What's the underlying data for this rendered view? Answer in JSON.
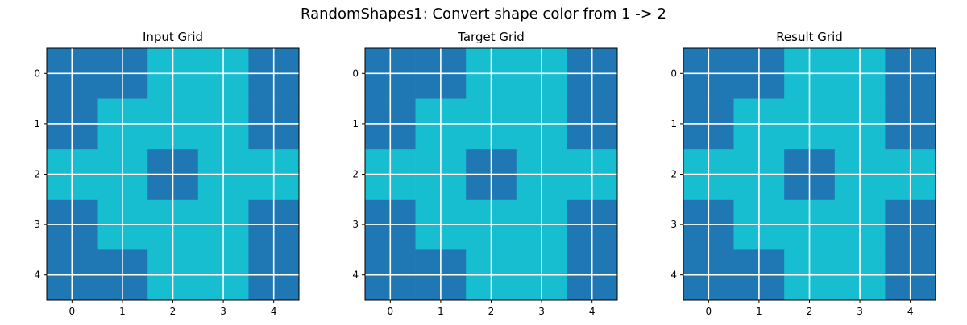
{
  "figure": {
    "title": "RandomShapes1: Convert shape color from 1 -> 2"
  },
  "colors": {
    "1": "#1f77b4",
    "2": "#17becf",
    "gridline": "#ffffff"
  },
  "chart_data": [
    {
      "type": "heatmap",
      "title": "Input Grid",
      "x_ticks": [
        0,
        1,
        2,
        3,
        4
      ],
      "y_ticks": [
        0,
        1,
        2,
        3,
        4
      ],
      "grid": true,
      "cell_rows": [
        [
          1,
          1,
          1,
          1,
          2,
          2,
          2,
          2,
          1,
          1
        ],
        [
          1,
          1,
          1,
          1,
          2,
          2,
          2,
          2,
          1,
          1
        ],
        [
          1,
          1,
          2,
          2,
          2,
          2,
          2,
          2,
          1,
          1
        ],
        [
          1,
          1,
          2,
          2,
          2,
          2,
          2,
          2,
          1,
          1
        ],
        [
          2,
          2,
          2,
          2,
          1,
          1,
          2,
          2,
          2,
          2
        ],
        [
          2,
          2,
          2,
          2,
          1,
          1,
          2,
          2,
          2,
          2
        ],
        [
          1,
          1,
          2,
          2,
          2,
          2,
          2,
          2,
          1,
          1
        ],
        [
          1,
          1,
          2,
          2,
          2,
          2,
          2,
          2,
          1,
          1
        ],
        [
          1,
          1,
          1,
          1,
          2,
          2,
          2,
          2,
          1,
          1
        ],
        [
          1,
          1,
          1,
          1,
          2,
          2,
          2,
          2,
          1,
          1
        ]
      ]
    },
    {
      "type": "heatmap",
      "title": "Target Grid",
      "x_ticks": [
        0,
        1,
        2,
        3,
        4
      ],
      "y_ticks": [
        0,
        1,
        2,
        3,
        4
      ],
      "grid": true,
      "cell_rows": [
        [
          1,
          1,
          1,
          1,
          2,
          2,
          2,
          2,
          1,
          1
        ],
        [
          1,
          1,
          1,
          1,
          2,
          2,
          2,
          2,
          1,
          1
        ],
        [
          1,
          1,
          2,
          2,
          2,
          2,
          2,
          2,
          1,
          1
        ],
        [
          1,
          1,
          2,
          2,
          2,
          2,
          2,
          2,
          1,
          1
        ],
        [
          2,
          2,
          2,
          2,
          1,
          1,
          2,
          2,
          2,
          2
        ],
        [
          2,
          2,
          2,
          2,
          1,
          1,
          2,
          2,
          2,
          2
        ],
        [
          1,
          1,
          2,
          2,
          2,
          2,
          2,
          2,
          1,
          1
        ],
        [
          1,
          1,
          2,
          2,
          2,
          2,
          2,
          2,
          1,
          1
        ],
        [
          1,
          1,
          1,
          1,
          2,
          2,
          2,
          2,
          1,
          1
        ],
        [
          1,
          1,
          1,
          1,
          2,
          2,
          2,
          2,
          1,
          1
        ]
      ]
    },
    {
      "type": "heatmap",
      "title": "Result Grid",
      "x_ticks": [
        0,
        1,
        2,
        3,
        4
      ],
      "y_ticks": [
        0,
        1,
        2,
        3,
        4
      ],
      "grid": true,
      "cell_rows": [
        [
          1,
          1,
          1,
          1,
          2,
          2,
          2,
          2,
          1,
          1
        ],
        [
          1,
          1,
          1,
          1,
          2,
          2,
          2,
          2,
          1,
          1
        ],
        [
          1,
          1,
          2,
          2,
          2,
          2,
          2,
          2,
          1,
          1
        ],
        [
          1,
          1,
          2,
          2,
          2,
          2,
          2,
          2,
          1,
          1
        ],
        [
          2,
          2,
          2,
          2,
          1,
          1,
          2,
          2,
          2,
          2
        ],
        [
          2,
          2,
          2,
          2,
          1,
          1,
          2,
          2,
          2,
          2
        ],
        [
          1,
          1,
          2,
          2,
          2,
          2,
          2,
          2,
          1,
          1
        ],
        [
          1,
          1,
          2,
          2,
          2,
          2,
          2,
          2,
          1,
          1
        ],
        [
          1,
          1,
          1,
          1,
          2,
          2,
          2,
          2,
          1,
          1
        ],
        [
          1,
          1,
          1,
          1,
          2,
          2,
          2,
          2,
          1,
          1
        ]
      ]
    }
  ]
}
